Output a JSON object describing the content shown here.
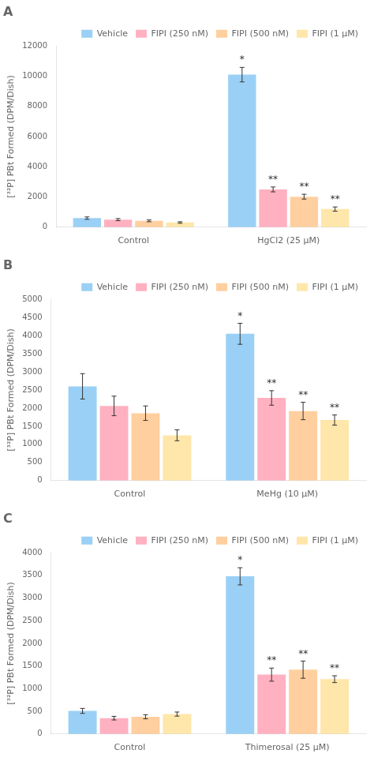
{
  "chart_data": [
    {
      "type": "bar",
      "title": "A",
      "y_label": "[³²P] PBt Formed (DPM/Dish)",
      "categories": [
        "Control",
        "HgCl2 (25 μM)"
      ],
      "series": [
        {
          "name": "Vehicle",
          "values": [
            600,
            10100
          ],
          "errors": [
            80,
            480
          ],
          "annotations": [
            null,
            "*"
          ]
        },
        {
          "name": "FIPI (250 nM)",
          "values": [
            500,
            2500
          ],
          "errors": [
            70,
            160
          ],
          "annotations": [
            null,
            "**"
          ]
        },
        {
          "name": "FIPI (500 nM)",
          "values": [
            420,
            2020
          ],
          "errors": [
            60,
            160
          ],
          "annotations": [
            null,
            "**"
          ]
        },
        {
          "name": "FIPI (1 μM)",
          "values": [
            310,
            1200
          ],
          "errors": [
            50,
            140
          ],
          "annotations": [
            null,
            "**"
          ]
        }
      ],
      "ylim": [
        0,
        12000
      ],
      "yticks": [
        0,
        2000,
        4000,
        6000,
        8000,
        10000,
        12000
      ],
      "grid": false,
      "legend": "upper right"
    },
    {
      "type": "bar",
      "title": "B",
      "y_label": "[³²P] PBt Formed (DPM/Dish)",
      "categories": [
        "Control",
        "MeHg (10 μM)"
      ],
      "series": [
        {
          "name": "Vehicle",
          "values": [
            2600,
            4050
          ],
          "errors": [
            350,
            290
          ],
          "annotations": [
            null,
            "*"
          ]
        },
        {
          "name": "FIPI (250 nM)",
          "values": [
            2060,
            2280
          ],
          "errors": [
            270,
            200
          ],
          "annotations": [
            null,
            "**"
          ]
        },
        {
          "name": "FIPI (500 nM)",
          "values": [
            1860,
            1920
          ],
          "errors": [
            200,
            240
          ],
          "annotations": [
            null,
            "**"
          ]
        },
        {
          "name": "FIPI (1 μM)",
          "values": [
            1250,
            1670
          ],
          "errors": [
            150,
            140
          ],
          "annotations": [
            null,
            "**"
          ]
        }
      ],
      "ylim": [
        0,
        5000
      ],
      "yticks": [
        0,
        500,
        1000,
        1500,
        2000,
        2500,
        3000,
        3500,
        4000,
        4500,
        5000
      ],
      "grid": false,
      "legend": "upper right"
    },
    {
      "type": "bar",
      "title": "C",
      "y_label": "[³²P] PBt Formed (DPM/Dish)",
      "categories": [
        "Control",
        "Thimerosal (25 μM)"
      ],
      "series": [
        {
          "name": "Vehicle",
          "values": [
            510,
            3480
          ],
          "errors": [
            55,
            190
          ],
          "annotations": [
            null,
            "*"
          ]
        },
        {
          "name": "FIPI (250 nM)",
          "values": [
            350,
            1310
          ],
          "errors": [
            40,
            145
          ],
          "annotations": [
            null,
            "**"
          ]
        },
        {
          "name": "FIPI (500 nM)",
          "values": [
            380,
            1420
          ],
          "errors": [
            45,
            190
          ],
          "annotations": [
            null,
            "**"
          ]
        },
        {
          "name": "FIPI (1 μM)",
          "values": [
            440,
            1210
          ],
          "errors": [
            45,
            75
          ],
          "annotations": [
            null,
            "**"
          ]
        }
      ],
      "ylim": [
        0,
        4000
      ],
      "yticks": [
        0,
        500,
        1000,
        1500,
        2000,
        2500,
        3000,
        3500,
        4000
      ],
      "grid": false,
      "legend": "upper right"
    }
  ]
}
